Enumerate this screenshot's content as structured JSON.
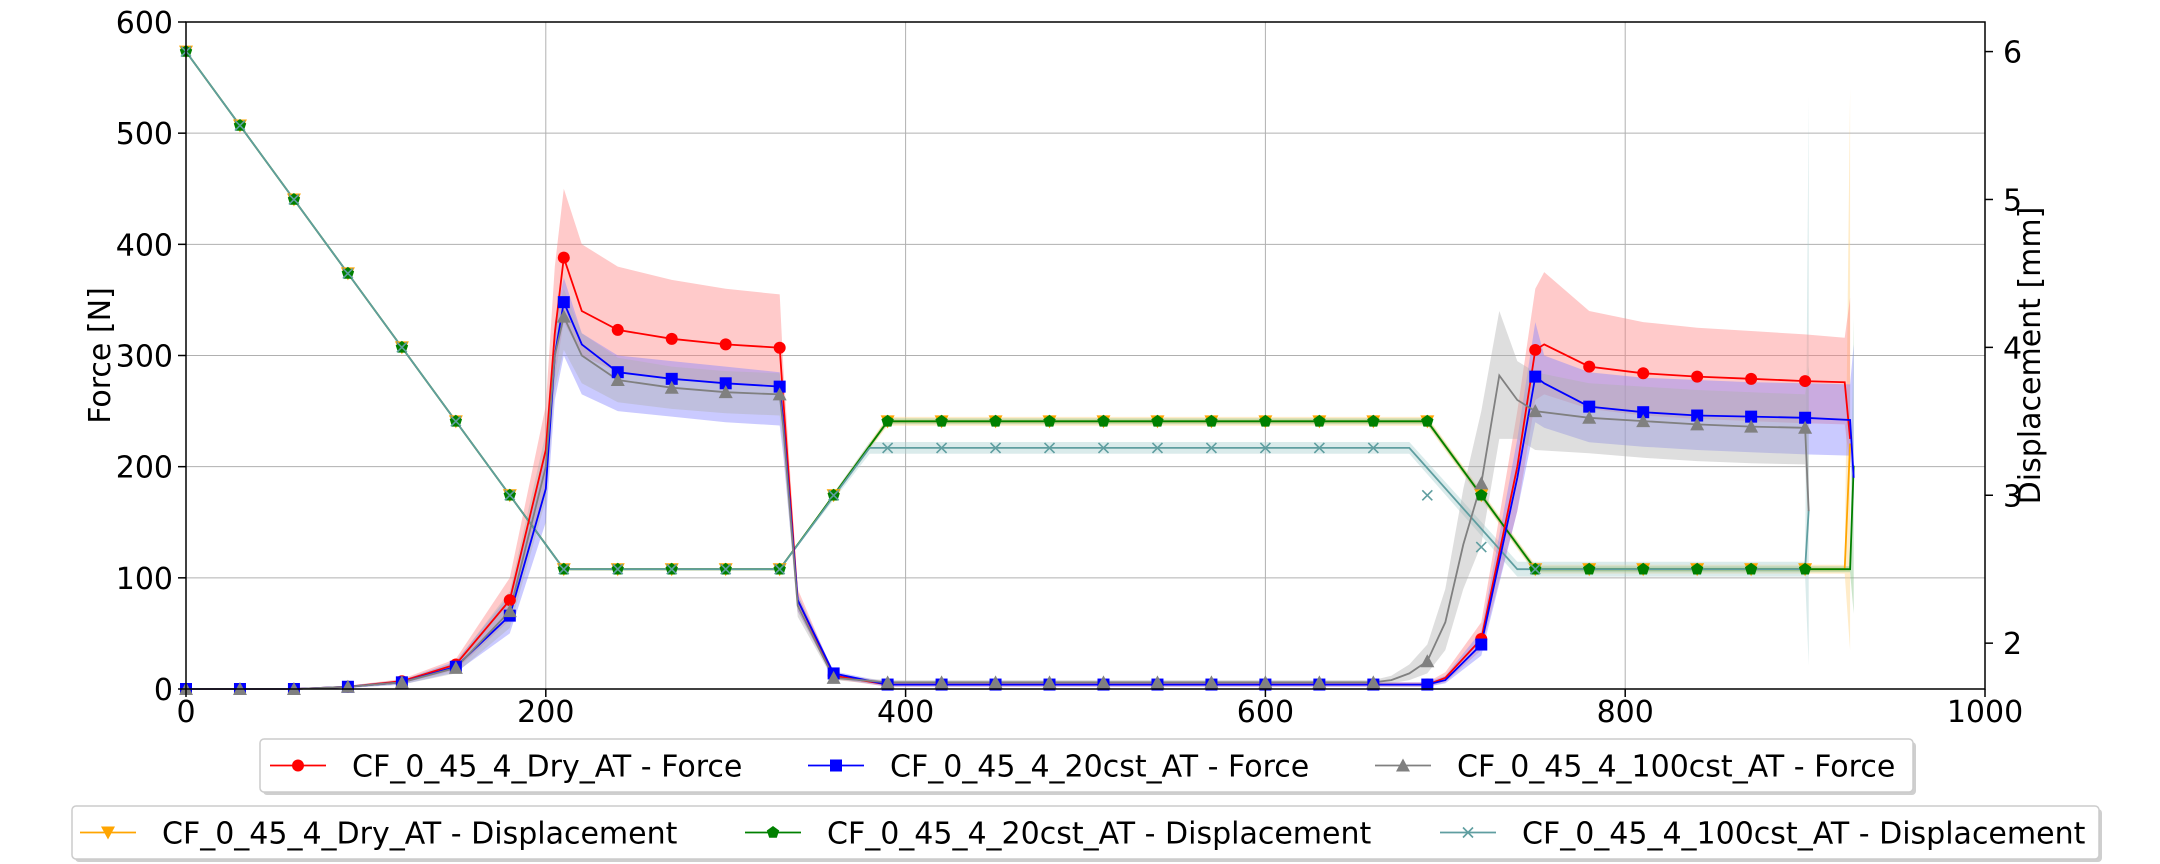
{
  "chart_data": {
    "type": "line",
    "title": "",
    "xlabel": "",
    "ylabel": "Force [N]",
    "y2label": "Displacement [mm]",
    "xlim": [
      0,
      1000
    ],
    "ylim": [
      0,
      600
    ],
    "y2lim": [
      1.69,
      6.2
    ],
    "grid": true,
    "x_ticks": [
      0,
      200,
      400,
      600,
      800,
      1000
    ],
    "y_ticks": [
      0,
      100,
      200,
      300,
      400,
      500,
      600
    ],
    "y2_ticks": [
      2,
      3,
      4,
      5,
      6
    ],
    "legend_position": "bottom, two rows",
    "force_series": [
      {
        "name": "CF_0_45_4_Dry_AT - Force",
        "color": "#ff0000",
        "band_color": "#ff8080",
        "marker": "circle",
        "x": [
          0,
          30,
          60,
          90,
          120,
          150,
          180,
          200,
          205,
          210,
          220,
          240,
          270,
          300,
          330,
          332,
          340,
          360,
          390,
          420,
          450,
          480,
          510,
          540,
          570,
          600,
          630,
          660,
          690,
          700,
          720,
          740,
          750,
          755,
          780,
          810,
          840,
          870,
          900,
          922,
          925
        ],
        "values": [
          0,
          0,
          0,
          2,
          7,
          22,
          80,
          215,
          320,
          388,
          340,
          323,
          315,
          310,
          307,
          260,
          80,
          12,
          4,
          4,
          4,
          4,
          4,
          4,
          4,
          4,
          4,
          4,
          4,
          10,
          45,
          200,
          305,
          310,
          290,
          284,
          281,
          279,
          277,
          276,
          225
        ],
        "band_upper": [
          0,
          0,
          0,
          3,
          9,
          27,
          100,
          255,
          380,
          450,
          400,
          380,
          368,
          360,
          355,
          290,
          90,
          14,
          6,
          6,
          6,
          6,
          6,
          6,
          6,
          6,
          6,
          6,
          6,
          15,
          60,
          250,
          360,
          375,
          340,
          330,
          325,
          322,
          319,
          316,
          352
        ],
        "band_lower": [
          0,
          0,
          0,
          1,
          5,
          17,
          62,
          180,
          280,
          330,
          300,
          285,
          280,
          275,
          272,
          230,
          70,
          9,
          2,
          2,
          2,
          2,
          2,
          2,
          2,
          2,
          2,
          2,
          2,
          6,
          35,
          160,
          260,
          265,
          252,
          246,
          243,
          241,
          239,
          238,
          200
        ],
        "marker_x": [
          0,
          30,
          60,
          90,
          120,
          150,
          180,
          210,
          240,
          270,
          300,
          330,
          360,
          390,
          420,
          450,
          480,
          510,
          540,
          570,
          600,
          630,
          660,
          690,
          720,
          750,
          780,
          810,
          840,
          870,
          900
        ],
        "marker_y": [
          0,
          0,
          0,
          2,
          7,
          22,
          80,
          388,
          323,
          315,
          310,
          307,
          12,
          4,
          4,
          4,
          4,
          4,
          4,
          4,
          4,
          4,
          4,
          4,
          45,
          305,
          290,
          284,
          281,
          279,
          277
        ]
      },
      {
        "name": "CF_0_45_4_20cst_AT - Force",
        "color": "#0000ff",
        "band_color": "#8080ff",
        "marker": "square",
        "x": [
          0,
          30,
          60,
          90,
          120,
          150,
          180,
          200,
          205,
          210,
          220,
          240,
          270,
          300,
          330,
          332,
          340,
          360,
          390,
          420,
          450,
          480,
          510,
          540,
          570,
          600,
          630,
          660,
          690,
          700,
          720,
          740,
          750,
          755,
          780,
          810,
          840,
          870,
          900,
          925,
          927
        ],
        "values": [
          0,
          0,
          0,
          2,
          6,
          20,
          66,
          180,
          300,
          348,
          310,
          285,
          279,
          275,
          272,
          240,
          80,
          14,
          4,
          4,
          4,
          4,
          4,
          4,
          4,
          4,
          4,
          4,
          4,
          8,
          40,
          190,
          281,
          275,
          254,
          249,
          246,
          245,
          244,
          242,
          190
        ],
        "band_upper": [
          0,
          0,
          0,
          3,
          8,
          25,
          85,
          215,
          330,
          370,
          320,
          300,
          295,
          290,
          285,
          250,
          85,
          16,
          6,
          6,
          6,
          6,
          6,
          6,
          6,
          6,
          6,
          6,
          6,
          12,
          52,
          225,
          330,
          300,
          285,
          280,
          278,
          276,
          275,
          274,
          310
        ],
        "band_lower": [
          0,
          0,
          0,
          1,
          4,
          15,
          50,
          150,
          260,
          300,
          265,
          250,
          245,
          240,
          237,
          210,
          70,
          10,
          2,
          2,
          2,
          2,
          2,
          2,
          2,
          2,
          2,
          2,
          2,
          5,
          30,
          160,
          240,
          235,
          222,
          218,
          215,
          213,
          211,
          210,
          170
        ],
        "marker_x": [
          0,
          30,
          60,
          90,
          120,
          150,
          180,
          210,
          240,
          270,
          300,
          330,
          360,
          390,
          420,
          450,
          480,
          510,
          540,
          570,
          600,
          630,
          660,
          690,
          720,
          750,
          780,
          810,
          840,
          870,
          900
        ],
        "marker_y": [
          0,
          0,
          0,
          2,
          6,
          20,
          66,
          348,
          285,
          279,
          275,
          272,
          14,
          4,
          4,
          4,
          4,
          4,
          4,
          4,
          4,
          4,
          4,
          4,
          40,
          281,
          254,
          249,
          246,
          245,
          244
        ]
      },
      {
        "name": "CF_0_45_4_100cst_AT - Force",
        "color": "#808080",
        "band_color": "#b0b0b0",
        "marker": "triangle",
        "x": [
          0,
          30,
          60,
          90,
          120,
          150,
          180,
          200,
          205,
          210,
          220,
          240,
          270,
          300,
          330,
          332,
          340,
          360,
          390,
          420,
          450,
          480,
          510,
          540,
          570,
          600,
          630,
          660,
          670,
          680,
          690,
          700,
          710,
          720,
          730,
          740,
          750,
          780,
          810,
          840,
          870,
          900,
          902
        ],
        "values": [
          0,
          0,
          0,
          2,
          6,
          19,
          70,
          200,
          300,
          335,
          300,
          278,
          271,
          267,
          265,
          235,
          75,
          10,
          6,
          6,
          6,
          6,
          6,
          6,
          6,
          6,
          6,
          6,
          8,
          14,
          25,
          60,
          130,
          185,
          282,
          260,
          250,
          244,
          241,
          238,
          236,
          235,
          160
        ],
        "band_upper": [
          0,
          0,
          0,
          3,
          8,
          24,
          88,
          230,
          330,
          360,
          320,
          298,
          290,
          286,
          284,
          250,
          85,
          12,
          8,
          8,
          8,
          8,
          8,
          8,
          8,
          8,
          8,
          8,
          12,
          22,
          40,
          90,
          180,
          250,
          340,
          295,
          285,
          275,
          272,
          269,
          267,
          265,
          290
        ],
        "band_lower": [
          0,
          0,
          0,
          1,
          4,
          14,
          55,
          170,
          270,
          305,
          275,
          258,
          252,
          248,
          246,
          215,
          65,
          8,
          4,
          4,
          4,
          4,
          4,
          4,
          4,
          4,
          4,
          4,
          5,
          8,
          14,
          35,
          90,
          130,
          225,
          225,
          215,
          212,
          208,
          205,
          203,
          202,
          140
        ],
        "marker_x": [
          0,
          30,
          60,
          90,
          120,
          150,
          180,
          210,
          240,
          270,
          300,
          330,
          360,
          390,
          420,
          450,
          480,
          510,
          540,
          570,
          600,
          630,
          660,
          690,
          720,
          750,
          780,
          810,
          840,
          870,
          900
        ],
        "marker_y": [
          0,
          0,
          0,
          2,
          6,
          19,
          70,
          335,
          278,
          271,
          267,
          265,
          10,
          6,
          6,
          6,
          6,
          6,
          6,
          6,
          6,
          6,
          6,
          25,
          185,
          250,
          244,
          241,
          238,
          236,
          235
        ]
      }
    ],
    "displacement_series": [
      {
        "name": "CF_0_45_4_Dry_AT - Displacement",
        "color": "#ffa500",
        "band_color": "#ffd27f",
        "marker": "triangle_down",
        "x": [
          0,
          210,
          330,
          390,
          690,
          750,
          922,
          925
        ],
        "values": [
          6.0,
          2.5,
          2.5,
          3.5,
          3.5,
          2.5,
          2.5,
          3.35
        ],
        "band_upper": [
          6.0,
          2.5,
          2.5,
          3.53,
          3.53,
          2.53,
          2.53,
          5.75
        ],
        "band_lower": [
          6.0,
          2.5,
          2.5,
          3.47,
          3.47,
          2.47,
          2.47,
          1.95
        ],
        "marker_x": [
          0,
          30,
          60,
          90,
          120,
          150,
          180,
          210,
          240,
          270,
          300,
          330,
          360,
          390,
          420,
          450,
          480,
          510,
          540,
          570,
          600,
          630,
          660,
          690,
          720,
          750,
          780,
          810,
          840,
          870,
          900
        ],
        "marker_y": [
          6.0,
          5.5,
          5.0,
          4.5,
          4.0,
          3.5,
          3.0,
          2.5,
          2.5,
          2.5,
          2.5,
          2.5,
          3.0,
          3.5,
          3.5,
          3.5,
          3.5,
          3.5,
          3.5,
          3.5,
          3.5,
          3.5,
          3.5,
          3.5,
          3.0,
          2.5,
          2.5,
          2.5,
          2.5,
          2.5,
          2.5
        ]
      },
      {
        "name": "CF_0_45_4_20cst_AT - Displacement",
        "color": "#008000",
        "band_color": "#80c080",
        "marker": "pentagon",
        "x": [
          0,
          210,
          330,
          390,
          690,
          750,
          925,
          927
        ],
        "values": [
          6.0,
          2.5,
          2.5,
          3.5,
          3.5,
          2.5,
          2.5,
          3.2
        ],
        "band_upper": [
          6.0,
          2.5,
          2.5,
          3.52,
          3.52,
          2.52,
          2.52,
          4.2
        ],
        "band_lower": [
          6.0,
          2.5,
          2.5,
          3.48,
          3.48,
          2.48,
          2.48,
          2.2
        ],
        "marker_x": [
          0,
          30,
          60,
          90,
          120,
          150,
          180,
          210,
          240,
          270,
          300,
          330,
          360,
          390,
          420,
          450,
          480,
          510,
          540,
          570,
          600,
          630,
          660,
          690,
          720,
          750,
          780,
          810,
          840,
          870,
          900
        ],
        "marker_y": [
          6.0,
          5.5,
          5.0,
          4.5,
          4.0,
          3.5,
          3.0,
          2.5,
          2.5,
          2.5,
          2.5,
          2.5,
          3.0,
          3.5,
          3.5,
          3.5,
          3.5,
          3.5,
          3.5,
          3.5,
          3.5,
          3.5,
          3.5,
          3.5,
          3.0,
          2.5,
          2.5,
          2.5,
          2.5,
          2.5,
          2.5
        ]
      },
      {
        "name": "CF_0_45_4_100cst_AT - Displacement",
        "color": "#5f9ea0",
        "band_color": "#a8d0d0",
        "marker": "x",
        "x": [
          0,
          210,
          330,
          380,
          680,
          740,
          900,
          902
        ],
        "values": [
          6.0,
          2.5,
          2.5,
          3.32,
          3.32,
          2.5,
          2.5,
          2.9
        ],
        "band_upper": [
          6.0,
          2.5,
          2.5,
          3.36,
          3.36,
          2.55,
          2.55,
          5.7
        ],
        "band_lower": [
          6.0,
          2.5,
          2.5,
          3.28,
          3.28,
          2.45,
          2.45,
          1.85
        ],
        "marker_x": [
          0,
          30,
          60,
          90,
          120,
          150,
          180,
          210,
          240,
          270,
          300,
          330,
          360,
          390,
          420,
          450,
          480,
          510,
          540,
          570,
          600,
          630,
          660,
          690,
          720,
          750
        ],
        "marker_y": [
          6.0,
          5.5,
          5.0,
          4.5,
          4.0,
          3.5,
          3.0,
          2.5,
          2.5,
          2.5,
          2.5,
          2.5,
          3.0,
          3.32,
          3.32,
          3.32,
          3.32,
          3.32,
          3.32,
          3.32,
          3.32,
          3.32,
          3.32,
          3.0,
          2.65,
          2.5
        ]
      }
    ]
  }
}
